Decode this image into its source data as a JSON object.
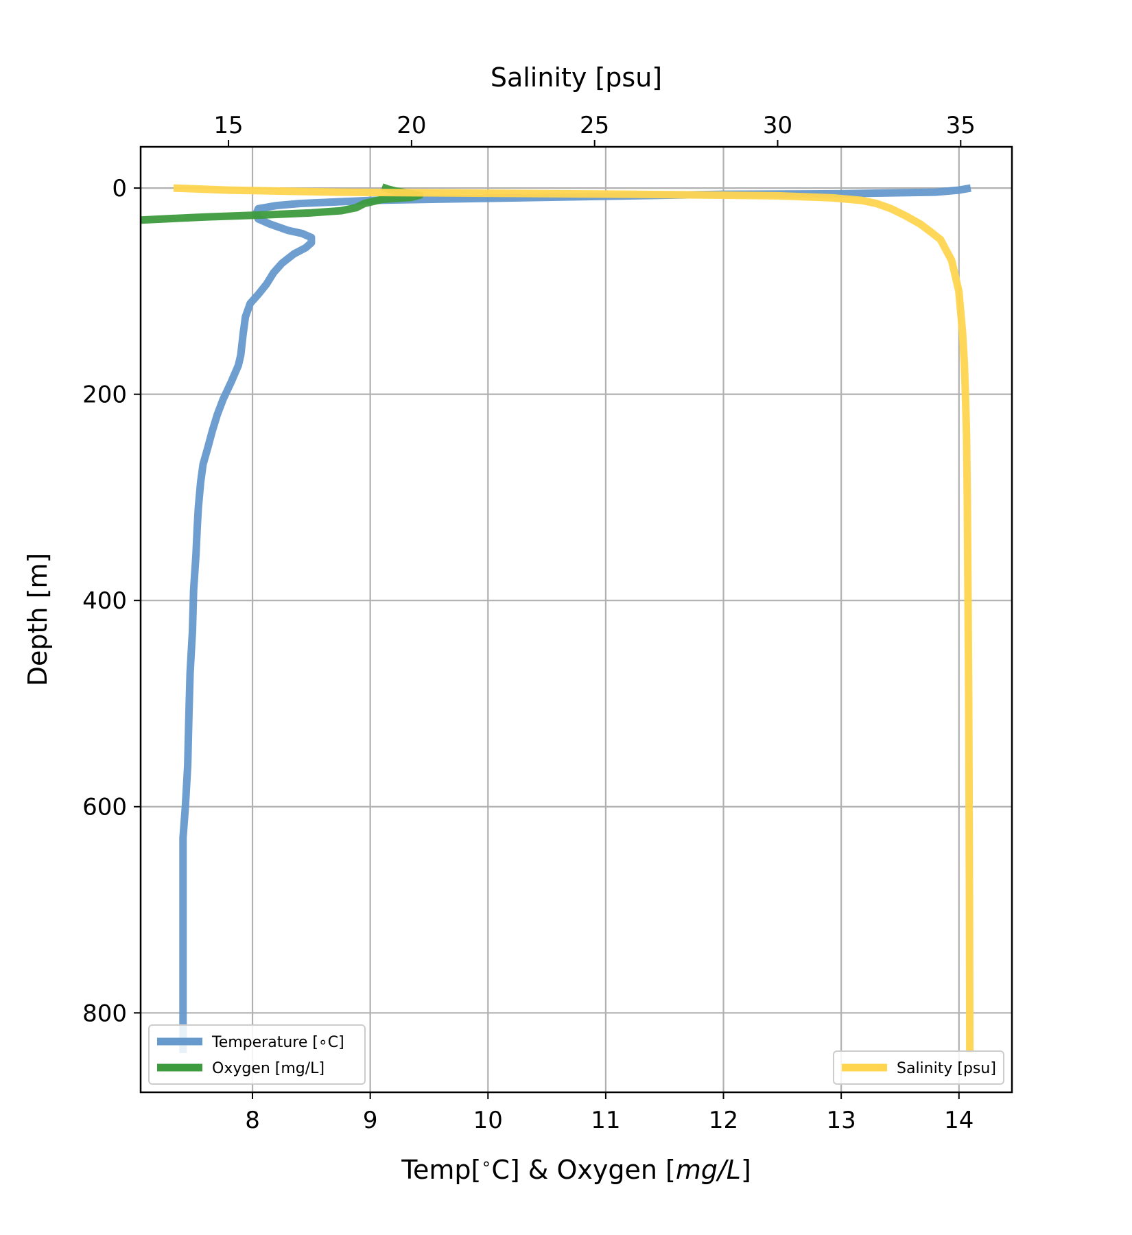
{
  "chart_data": {
    "type": "line",
    "orientation": "depth-profile",
    "grid": true,
    "axes": {
      "bottom": {
        "label_prefix": "Temp[",
        "label_degree": "∘",
        "label_mid": "C] & Oxygen [",
        "label_italic": "mg/L",
        "label_suffix": "]",
        "range": [
          7.05,
          14.45
        ],
        "ticks": [
          8,
          9,
          10,
          11,
          12,
          13,
          14
        ]
      },
      "top": {
        "label": "Salinity [psu]",
        "range": [
          12.6,
          36.4
        ],
        "ticks": [
          15,
          20,
          25,
          30,
          35
        ]
      },
      "left": {
        "label": "Depth [m]",
        "range": [
          -40,
          877
        ],
        "inverted": true,
        "ticks": [
          0,
          200,
          400,
          600,
          800
        ]
      }
    },
    "series": [
      {
        "name": "Temperature [∘C]",
        "axis": "bottom",
        "color": "#6699cc",
        "points": [
          [
            14.1,
            0
          ],
          [
            14.0,
            2
          ],
          [
            13.8,
            4
          ],
          [
            13.0,
            5.5
          ],
          [
            12.0,
            6
          ],
          [
            11.0,
            8
          ],
          [
            10.0,
            10
          ],
          [
            9.0,
            12
          ],
          [
            8.6,
            14
          ],
          [
            8.4,
            15
          ],
          [
            8.2,
            17
          ],
          [
            8.05,
            20
          ],
          [
            8.03,
            25
          ],
          [
            8.05,
            30
          ],
          [
            8.15,
            35
          ],
          [
            8.3,
            41
          ],
          [
            8.42,
            44
          ],
          [
            8.5,
            48
          ],
          [
            8.5,
            53
          ],
          [
            8.45,
            58
          ],
          [
            8.35,
            64
          ],
          [
            8.25,
            73
          ],
          [
            8.18,
            82
          ],
          [
            8.12,
            93
          ],
          [
            8.05,
            103
          ],
          [
            7.98,
            112
          ],
          [
            7.94,
            125
          ],
          [
            7.92,
            142
          ],
          [
            7.9,
            162
          ],
          [
            7.88,
            172
          ],
          [
            7.82,
            188
          ],
          [
            7.75,
            205
          ],
          [
            7.7,
            220
          ],
          [
            7.66,
            235
          ],
          [
            7.62,
            252
          ],
          [
            7.58,
            268
          ],
          [
            7.56,
            285
          ],
          [
            7.54,
            310
          ],
          [
            7.53,
            330
          ],
          [
            7.52,
            355
          ],
          [
            7.5,
            390
          ],
          [
            7.49,
            430
          ],
          [
            7.47,
            470
          ],
          [
            7.46,
            510
          ],
          [
            7.45,
            560
          ],
          [
            7.43,
            600
          ],
          [
            7.41,
            630
          ],
          [
            7.41,
            700
          ],
          [
            7.41,
            780
          ],
          [
            7.41,
            839
          ]
        ]
      },
      {
        "name": "Oxygen [mg/L]",
        "axis": "bottom",
        "color": "#3d9b3d",
        "points": [
          [
            9.1,
            -1
          ],
          [
            9.15,
            1
          ],
          [
            9.22,
            3
          ],
          [
            9.33,
            5
          ],
          [
            9.42,
            7
          ],
          [
            9.35,
            9
          ],
          [
            9.1,
            11
          ],
          [
            8.95,
            15
          ],
          [
            8.88,
            19
          ],
          [
            8.75,
            22
          ],
          [
            8.5,
            24
          ],
          [
            8.1,
            26
          ],
          [
            7.6,
            28
          ],
          [
            7.05,
            31
          ]
        ]
      },
      {
        "name": "Salinity [psu]",
        "axis": "top",
        "color": "#ffd54f",
        "points": [
          [
            13.5,
            0
          ],
          [
            15.0,
            2
          ],
          [
            18.0,
            4
          ],
          [
            22.0,
            5
          ],
          [
            26.0,
            6
          ],
          [
            30.0,
            7.5
          ],
          [
            31.5,
            9.5
          ],
          [
            32.3,
            12
          ],
          [
            32.7,
            15
          ],
          [
            33.1,
            20
          ],
          [
            33.5,
            27
          ],
          [
            33.9,
            35
          ],
          [
            34.2,
            43
          ],
          [
            34.45,
            50
          ],
          [
            34.6,
            60
          ],
          [
            34.75,
            70
          ],
          [
            34.85,
            85
          ],
          [
            34.95,
            100
          ],
          [
            35.0,
            120
          ],
          [
            35.05,
            140
          ],
          [
            35.1,
            170
          ],
          [
            35.13,
            200
          ],
          [
            35.16,
            240
          ],
          [
            35.18,
            300
          ],
          [
            35.2,
            400
          ],
          [
            35.22,
            500
          ],
          [
            35.23,
            600
          ],
          [
            35.24,
            700
          ],
          [
            35.25,
            839
          ]
        ]
      }
    ],
    "legends": [
      {
        "placement": "lower-left",
        "entries": [
          "Temperature [∘C]",
          "Oxygen [mg/L]"
        ]
      },
      {
        "placement": "lower-right",
        "entries": [
          "Salinity [psu]"
        ]
      }
    ]
  }
}
